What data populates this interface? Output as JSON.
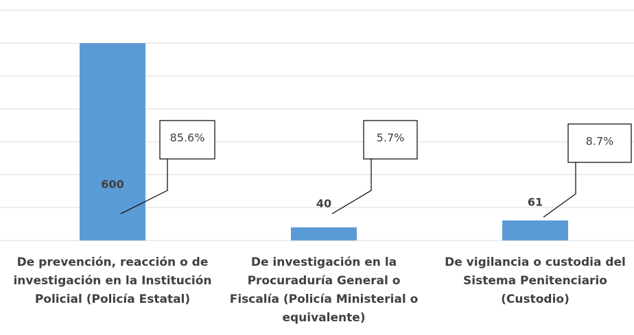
{
  "chart_data": {
    "type": "bar",
    "categories": [
      "De prevención, reacción o de investigación en la Institución Policial (Policía Estatal)",
      "De investigación en la Procuraduría General o Fiscalía (Policía Ministerial o equivalente)",
      "De vigilancia o custodia del Sistema Penitenciario (Custodio)"
    ],
    "values": [
      600,
      40,
      61
    ],
    "shares": [
      85.6,
      5.7,
      8.7
    ],
    "share_labels": [
      "85.6%",
      "5.7%",
      "8.7%"
    ],
    "color": "#5b9bd5",
    "ylim": [
      0,
      700
    ],
    "yticks": [
      0,
      100,
      200,
      300,
      400,
      500,
      600,
      700
    ],
    "grid": true
  }
}
